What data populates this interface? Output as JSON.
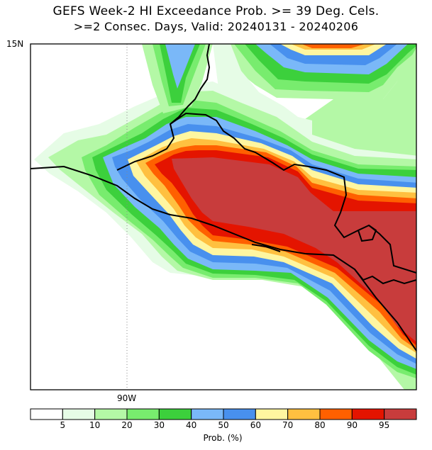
{
  "title": {
    "line1": "GEFS Week-2 HI Exceedance Prob. >= 39 Deg. Cels.",
    "line2": ">=2 Consec. Days, Valid: 20240131 - 20240206"
  },
  "map": {
    "lat_label": "15N",
    "lon_label": "90W",
    "colors": {
      "p5": "#ffffff",
      "p10": "#e6fce6",
      "p20": "#b4f8a6",
      "p30": "#78ec6e",
      "p40": "#3cd03c",
      "p50": "#7ab8f8",
      "p60": "#4890ee",
      "p70": "#fff6a0",
      "p80": "#ffc040",
      "p90": "#ff6000",
      "p95": "#e41400",
      "p100": "#c83c3c"
    }
  },
  "colorbar": {
    "label": "Prob. (%)",
    "ticks": [
      "5",
      "10",
      "20",
      "30",
      "40",
      "50",
      "60",
      "70",
      "80",
      "90",
      "95"
    ],
    "colors": [
      "#ffffff",
      "#e6fce6",
      "#b4f8a6",
      "#78ec6e",
      "#3cd03c",
      "#7ab8f8",
      "#4890ee",
      "#fff6a0",
      "#ffc040",
      "#ff6000",
      "#e41400",
      "#c83c3c"
    ]
  }
}
